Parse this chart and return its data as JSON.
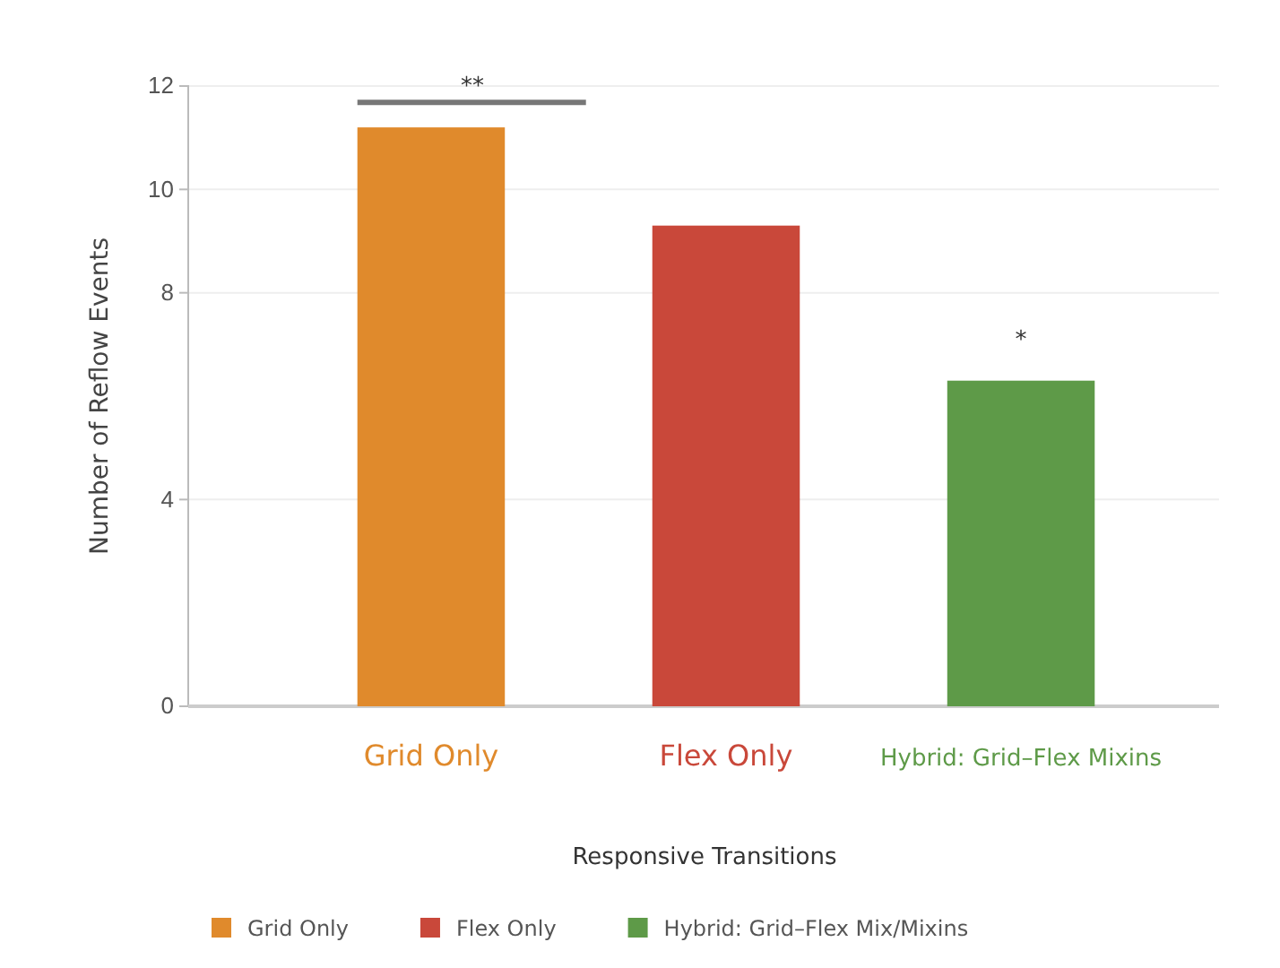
{
  "chart_data": {
    "type": "bar",
    "categories": [
      "Grid Only",
      "Flex Only",
      "Hybrid: Grid–Flex Mixins"
    ],
    "series": [
      {
        "name": "Grid Only",
        "color": "#e08a2c",
        "values": [
          11.2,
          null,
          null
        ]
      },
      {
        "name": "Flex Only",
        "color": "#c9483a",
        "values": [
          null,
          9.3,
          null
        ]
      },
      {
        "name": "Hybrid: Grid–Flex Mix/Mixins",
        "color": "#5e9a48",
        "values": [
          null,
          null,
          6.3
        ]
      }
    ],
    "xlabel": "Responsive Transitions",
    "ylabel": "Number of Reflow Events",
    "ylim": [
      0,
      12
    ],
    "yticks": [
      0,
      4,
      8,
      10,
      12
    ],
    "grid": "y",
    "legend": "bottom",
    "annotations": [
      "**",
      "*"
    ]
  }
}
